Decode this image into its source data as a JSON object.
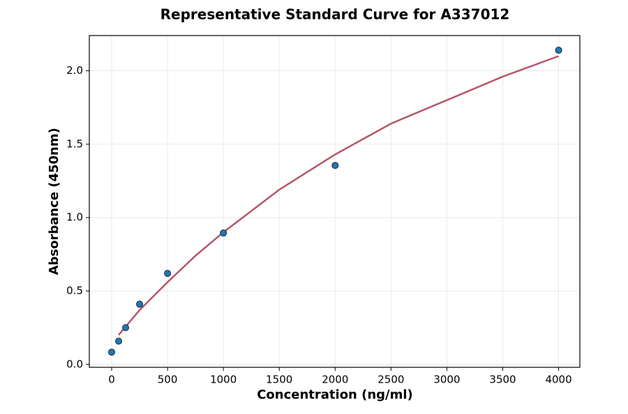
{
  "chart_data": {
    "type": "scatter",
    "title": "Representative Standard Curve for A337012",
    "x_label": "Concentration (ng/ml)",
    "y_label": "Absorbance (450nm)",
    "x": [
      0,
      62.5,
      125,
      250,
      500,
      1000,
      2000,
      4000
    ],
    "values": [
      0.083,
      0.158,
      0.25,
      0.41,
      0.62,
      0.895,
      1.355,
      2.14
    ],
    "color": "#1f77b4",
    "fit": {
      "type": "line",
      "x": [
        62.5,
        250,
        500,
        750,
        1000,
        1500,
        2000,
        2500,
        3000,
        3500,
        4000
      ],
      "values": [
        0.2,
        0.37,
        0.56,
        0.74,
        0.9,
        1.19,
        1.43,
        1.64,
        1.8,
        1.96,
        2.1
      ],
      "color": "#b5566a"
    },
    "xlim": [
      -200,
      4190
    ],
    "ylim": [
      -0.02,
      2.24
    ],
    "xticks": [
      0,
      500,
      1000,
      1500,
      2000,
      2500,
      3000,
      3500,
      4000
    ],
    "yticks": [
      {
        "value": 0,
        "label": "0.0"
      },
      0.5,
      {
        "value": 1,
        "label": "1.0"
      },
      1.5,
      {
        "value": 2,
        "label": "2.0"
      }
    ],
    "grid": true
  }
}
